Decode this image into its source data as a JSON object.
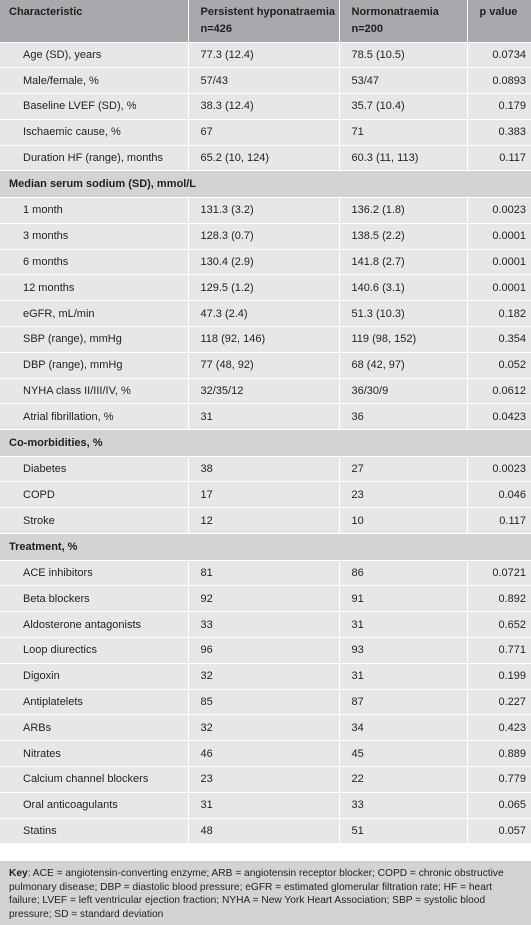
{
  "table": {
    "headers": [
      "Characteristic",
      "Persistent hyponatraemia",
      "n=426",
      "Normonatraemia",
      "n=200",
      "p value"
    ],
    "rows": [
      {
        "label": "Age (SD), years",
        "hypo": "77.3 (12.4)",
        "normo": "78.5 (10.5)",
        "p": "0.0734"
      },
      {
        "label": "Male/female, %",
        "hypo": "57/43",
        "normo": "53/47",
        "p": "0.0893"
      },
      {
        "label": "Baseline LVEF (SD), %",
        "hypo": "38.3 (12.4)",
        "normo": "35.7 (10.4)",
        "p": "0.179"
      },
      {
        "label": "Ischaemic cause, %",
        "hypo": "67",
        "normo": "71",
        "p": "0.383"
      },
      {
        "label": "Duration HF (range), months",
        "hypo": "65.2 (10, 124)",
        "normo": "60.3 (11, 113)",
        "p": "0.117"
      }
    ],
    "section_sodium": "Median serum sodium (SD), mmol/L",
    "sodium_rows": [
      {
        "label": "1 month",
        "hypo": "131.3 (3.2)",
        "normo": "136.2 (1.8)",
        "p": "0.0023"
      },
      {
        "label": "3 months",
        "hypo": "128.3 (0.7)",
        "normo": "138.5 (2.2)",
        "p": "0.0001"
      },
      {
        "label": "6 months",
        "hypo": "130.4 (2.9)",
        "normo": "141.8 (2.7)",
        "p": "0.0001"
      },
      {
        "label": "12 months",
        "hypo": "129.5 (1.2)",
        "normo": "140.6 (3.1)",
        "p": "0.0001"
      },
      {
        "label": "eGFR, mL/min",
        "hypo": "47.3 (2.4)",
        "normo": "51.3 (10.3)",
        "p": "0.182"
      },
      {
        "label": "SBP (range), mmHg",
        "hypo": "118 (92, 146)",
        "normo": "119 (98, 152)",
        "p": "0.354"
      },
      {
        "label": "DBP (range), mmHg",
        "hypo": "77 (48, 92)",
        "normo": "68 (42, 97)",
        "p": "0.052"
      },
      {
        "label": "NYHA class II/III/IV, %",
        "hypo": "32/35/12",
        "normo": "36/30/9",
        "p": "0.0612"
      },
      {
        "label": "Atrial fibrillation, %",
        "hypo": "31",
        "normo": "36",
        "p": "0.0423"
      }
    ],
    "section_comorb": "Co-morbidities, %",
    "comorb_rows": [
      {
        "label": "Diabetes",
        "hypo": "38",
        "normo": "27",
        "p": "0.0023"
      },
      {
        "label": "COPD",
        "hypo": "17",
        "normo": "23",
        "p": "0.046"
      },
      {
        "label": "Stroke",
        "hypo": "12",
        "normo": "10",
        "p": "0.117"
      }
    ],
    "section_treat": "Treatment, %",
    "treat_rows": [
      {
        "label": "ACE inhibitors",
        "hypo": "81",
        "normo": "86",
        "p": "0.0721"
      },
      {
        "label": "Beta blockers",
        "hypo": "92",
        "normo": "91",
        "p": "0.892"
      },
      {
        "label": "Aldosterone antagonists",
        "hypo": "33",
        "normo": "31",
        "p": "0.652"
      },
      {
        "label": "Loop diurectics",
        "hypo": "96",
        "normo": "93",
        "p": "0.771"
      },
      {
        "label": "Digoxin",
        "hypo": "32",
        "normo": "31",
        "p": "0.199"
      },
      {
        "label": "Antiplatelets",
        "hypo": "85",
        "normo": "87",
        "p": "0.227"
      },
      {
        "label": "ARBs",
        "hypo": "32",
        "normo": "34",
        "p": "0.423"
      },
      {
        "label": "Nitrates",
        "hypo": "46",
        "normo": "45",
        "p": "0.889"
      },
      {
        "label": "Calcium channel blockers",
        "hypo": "23",
        "normo": "22",
        "p": "0.779"
      },
      {
        "label": "Oral anticoagulants",
        "hypo": "31",
        "normo": "33",
        "p": "0.065"
      },
      {
        "label": "Statins",
        "hypo": "48",
        "normo": "51",
        "p": "0.057"
      }
    ]
  },
  "key": {
    "label": "Key",
    "text": ": ACE = angiotensin-converting enzyme; ARB = angiotensin receptor blocker; COPD = chronic obstructive pulmonary disease; DBP = diastolic blood pressure; eGFR = estimated glomerular filtration rate; HF = heart failure; LVEF = left ventricular ejection fraction; NYHA = New York Heart Association; SBP = systolic blood pressure; SD = standard deviation"
  },
  "colors": {
    "header_bg": "#a7a9ac",
    "row_bg": "#e6e7e8",
    "section_bg": "#d1d3d4",
    "text": "#231f20"
  }
}
